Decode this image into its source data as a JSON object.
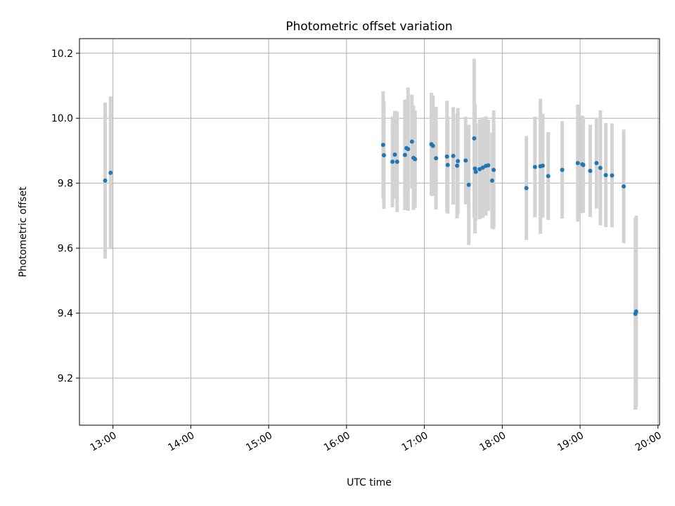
{
  "chart_data": {
    "type": "scatter",
    "title": "Photometric offset variation",
    "xlabel": "UTC time",
    "ylabel": "Photometric offset",
    "grid": true,
    "x_unit": "UTC hour",
    "xlim": [
      12.57,
      20.02
    ],
    "ylim": [
      9.055,
      10.245
    ],
    "x_ticks": [
      13,
      14,
      15,
      16,
      17,
      18,
      19,
      20
    ],
    "x_tick_labels": [
      "13:00",
      "14:00",
      "15:00",
      "16:00",
      "17:00",
      "18:00",
      "19:00",
      "20:00"
    ],
    "y_ticks": [
      9.2,
      9.4,
      9.6,
      9.8,
      10.0,
      10.2
    ],
    "y_tick_labels": [
      "9.2",
      "9.4",
      "9.6",
      "9.8",
      "10.0",
      "10.2"
    ],
    "colors": {
      "points": "#1f77b4",
      "errorbars": "#d3d3d3",
      "grid": "#b0b0b0"
    },
    "series": [
      {
        "x": [
          12.9,
          12.97,
          16.47,
          16.48,
          16.59,
          16.62,
          16.65,
          16.75,
          16.77,
          16.79,
          16.84,
          16.86,
          16.88,
          17.09,
          17.11,
          17.15,
          17.29,
          17.3,
          17.37,
          17.42,
          17.43,
          17.53,
          17.57,
          17.64,
          17.65,
          17.66,
          17.71,
          17.75,
          17.79,
          17.82,
          17.87,
          17.89,
          18.31,
          18.42,
          18.49,
          18.52,
          18.59,
          18.77,
          18.97,
          19.03,
          19.04,
          19.13,
          19.21,
          19.26,
          19.33,
          19.41,
          19.56,
          19.71,
          19.72
        ],
        "y": [
          9.808,
          9.832,
          9.918,
          9.886,
          9.866,
          9.888,
          9.866,
          9.887,
          9.908,
          9.905,
          9.928,
          9.878,
          9.874,
          9.92,
          9.915,
          9.877,
          9.882,
          9.856,
          9.884,
          9.854,
          9.868,
          9.87,
          9.795,
          9.938,
          9.845,
          9.835,
          9.843,
          9.848,
          9.853,
          9.855,
          9.808,
          9.841,
          9.785,
          9.85,
          9.852,
          9.854,
          9.822,
          9.841,
          9.862,
          9.858,
          9.856,
          9.838,
          9.862,
          9.847,
          9.825,
          9.824,
          9.79,
          9.398,
          9.405
        ],
        "err": [
          0.24,
          0.235,
          0.165,
          0.165,
          0.14,
          0.135,
          0.155,
          0.17,
          0.15,
          0.19,
          0.145,
          0.16,
          0.15,
          0.158,
          0.155,
          0.158,
          0.172,
          0.15,
          0.15,
          0.162,
          0.163,
          0.135,
          0.185,
          0.245,
          0.2,
          0.15,
          0.154,
          0.155,
          0.153,
          0.14,
          0.148,
          0.183,
          0.16,
          0.155,
          0.208,
          0.16,
          0.135,
          0.15,
          0.18,
          0.15,
          0.147,
          0.142,
          0.14,
          0.177,
          0.16,
          0.16,
          0.175,
          0.295,
          0.295
        ]
      }
    ]
  }
}
